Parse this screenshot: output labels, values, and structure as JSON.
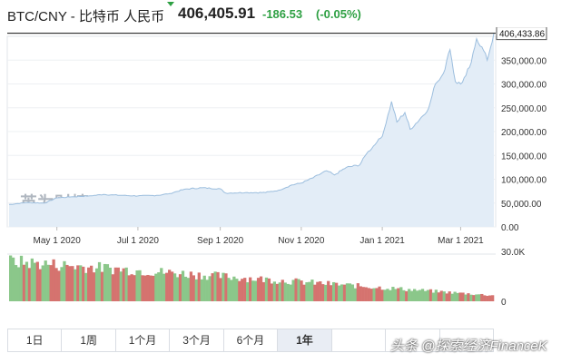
{
  "header": {
    "pair": "BTC/CNY - 比特币 人民币",
    "price": "406,405.91",
    "change": "-186.53",
    "change_pct": "(-0.05%)",
    "up_color": "#2ea043"
  },
  "watermark": {
    "logo_cn": "英为财情",
    "logo_en": "Investing.com",
    "overlay": "头条 @探索经济FinanceK"
  },
  "tabs": [
    {
      "label": "1日",
      "active": false
    },
    {
      "label": "1周",
      "active": false
    },
    {
      "label": "1个月",
      "active": false
    },
    {
      "label": "3个月",
      "active": false
    },
    {
      "label": "6个月",
      "active": false
    },
    {
      "label": "1年",
      "active": true
    },
    {
      "label": "",
      "active": false
    },
    {
      "label": "",
      "active": false
    },
    {
      "label": "",
      "active": false
    }
  ],
  "chart_data": [
    {
      "type": "area",
      "x_ticks": [
        "May 1 2020",
        "Jul 1 2020",
        "Sep 1 2020",
        "Nov 1 2020",
        "Jan 1 2021",
        "Mar 1 2021"
      ],
      "x_range": [
        "2020-03-26",
        "2021-03-26"
      ],
      "y_ticks": [
        "0.00",
        "50,000.00",
        "100,000.00",
        "150,000.00",
        "200,000.00",
        "250,000.00",
        "300,000.00",
        "350,000.00"
      ],
      "ylim": [
        0,
        400000
      ],
      "last_value_label": "406,433.86",
      "last_value": 406433.86,
      "series": [
        {
          "points": [
            [
              "2020-03-26",
              47000
            ],
            [
              "2020-04-08",
              51000
            ],
            [
              "2020-04-22",
              50000
            ],
            [
              "2020-05-01",
              61000
            ],
            [
              "2020-05-12",
              63000
            ],
            [
              "2020-05-25",
              65000
            ],
            [
              "2020-06-05",
              68000
            ],
            [
              "2020-06-20",
              66000
            ],
            [
              "2020-07-01",
              65000
            ],
            [
              "2020-07-15",
              66000
            ],
            [
              "2020-07-25",
              70000
            ],
            [
              "2020-08-05",
              79000
            ],
            [
              "2020-08-18",
              82000
            ],
            [
              "2020-09-01",
              80000
            ],
            [
              "2020-09-05",
              71000
            ],
            [
              "2020-09-20",
              72000
            ],
            [
              "2020-10-05",
              72000
            ],
            [
              "2020-10-15",
              77000
            ],
            [
              "2020-10-25",
              88000
            ],
            [
              "2020-11-01",
              92000
            ],
            [
              "2020-11-10",
              103000
            ],
            [
              "2020-11-20",
              118000
            ],
            [
              "2020-11-26",
              109000
            ],
            [
              "2020-12-05",
              125000
            ],
            [
              "2020-12-15",
              130000
            ],
            [
              "2020-12-20",
              153000
            ],
            [
              "2020-12-28",
              178000
            ],
            [
              "2021-01-01",
              190000
            ],
            [
              "2021-01-08",
              263000
            ],
            [
              "2021-01-12",
              220000
            ],
            [
              "2021-01-18",
              240000
            ],
            [
              "2021-01-22",
              205000
            ],
            [
              "2021-01-29",
              225000
            ],
            [
              "2021-02-05",
              250000
            ],
            [
              "2021-02-10",
              300000
            ],
            [
              "2021-02-16",
              322000
            ],
            [
              "2021-02-21",
              372000
            ],
            [
              "2021-02-25",
              305000
            ],
            [
              "2021-03-01",
              300000
            ],
            [
              "2021-03-05",
              318000
            ],
            [
              "2021-03-09",
              345000
            ],
            [
              "2021-03-13",
              395000
            ],
            [
              "2021-03-17",
              378000
            ],
            [
              "2021-03-21",
              350000
            ],
            [
              "2021-03-26",
              406433
            ]
          ]
        }
      ]
    },
    {
      "type": "bar",
      "y_ticks": [
        "0",
        "30.0K"
      ],
      "ylim": [
        0,
        30000
      ],
      "colors": {
        "up": "#8bc78a",
        "down": "#d5736f"
      },
      "volume_start": 27000,
      "volume_end": 4000,
      "bar_count": 180
    }
  ]
}
